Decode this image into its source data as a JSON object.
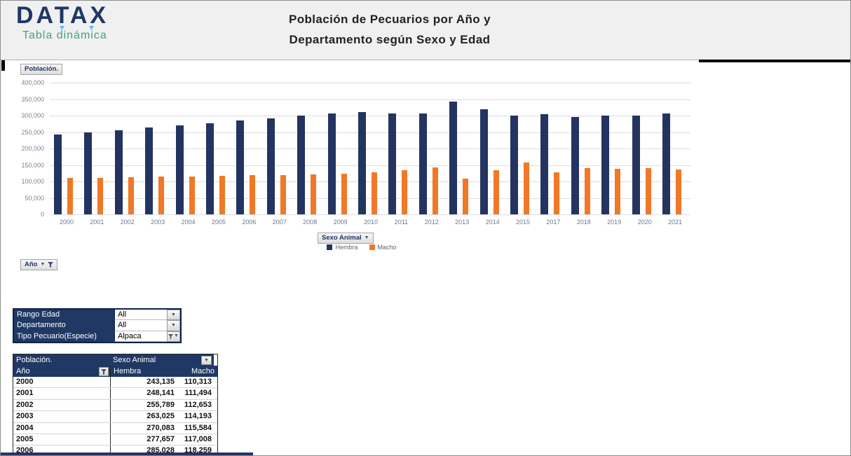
{
  "header": {
    "logo": "DATAX",
    "logo_subtitle": "Tabla dinámica",
    "title_line1": "Población de Pecuarios por Año y",
    "title_line2": "Departamento según Sexo y Edad"
  },
  "chart": {
    "value_field_button": "Población.",
    "series_field_button": "Sexo Animal",
    "axis_field_button": "Año",
    "legend": [
      {
        "label": "Hembra",
        "color": "#233461"
      },
      {
        "label": "Macho",
        "color": "#f07826"
      }
    ]
  },
  "chart_data": {
    "type": "bar",
    "title": "Población de Pecuarios por Año y Departamento según Sexo y Edad",
    "xlabel": "Año",
    "ylabel": "Población.",
    "categories": [
      "2000",
      "2001",
      "2002",
      "2003",
      "2004",
      "2005",
      "2006",
      "2007",
      "2008",
      "2009",
      "2010",
      "2011",
      "2012",
      "2013",
      "2014",
      "2015",
      "2017",
      "2018",
      "2019",
      "2020",
      "2021"
    ],
    "series": [
      {
        "name": "Hembra",
        "color": "#233461",
        "values": [
          243135,
          248141,
          255789,
          263025,
          270083,
          277657,
          285028,
          292000,
          299500,
          306000,
          311500,
          307000,
          306000,
          343000,
          320000,
          299000,
          305000,
          296000,
          301000,
          301000,
          307000
        ]
      },
      {
        "name": "Macho",
        "color": "#f07826",
        "values": [
          110313,
          111494,
          112653,
          114193,
          115584,
          117008,
          118259,
          120000,
          121500,
          122500,
          127000,
          135000,
          142000,
          109000,
          133000,
          157000,
          128000,
          140000,
          138000,
          140000,
          137000
        ]
      }
    ],
    "ylim": [
      0,
      400000
    ],
    "ytick_step": 50000,
    "ytick_labels": [
      "0",
      "50,000",
      "100,000",
      "150,000",
      "200,000",
      "250,000",
      "300,000",
      "350,000",
      "400,000"
    ],
    "grid": true,
    "legend_position": "bottom"
  },
  "filters": {
    "rows": [
      {
        "label": "Rango Edad",
        "value": "All",
        "filtered": false
      },
      {
        "label": "Departamento",
        "value": "All",
        "filtered": false
      },
      {
        "label": "Tipo Pecuario(Especie)",
        "value": "Alpaca",
        "filtered": true
      }
    ]
  },
  "pivot": {
    "value_field": "Población.",
    "column_field": "Sexo Animal",
    "row_field": "Año",
    "col_headers": [
      "Hembra",
      "Macho"
    ],
    "rows": [
      {
        "year": "2000",
        "hembra": "243,135",
        "macho": "110,313"
      },
      {
        "year": "2001",
        "hembra": "248,141",
        "macho": "111,494"
      },
      {
        "year": "2002",
        "hembra": "255,789",
        "macho": "112,653"
      },
      {
        "year": "2003",
        "hembra": "263,025",
        "macho": "114,193"
      },
      {
        "year": "2004",
        "hembra": "270,083",
        "macho": "115,584"
      },
      {
        "year": "2005",
        "hembra": "277,657",
        "macho": "117,008"
      },
      {
        "year": "2006",
        "hembra": "285,028",
        "macho": "118,259"
      }
    ]
  },
  "colors": {
    "navy": "#1f3864",
    "bar_navy": "#233461",
    "bar_orange": "#f07826",
    "logo_navy": "#1e3765",
    "logo_green": "#46a07f",
    "header_bg": "#f0f0f1",
    "gridline": "#dddde4"
  }
}
